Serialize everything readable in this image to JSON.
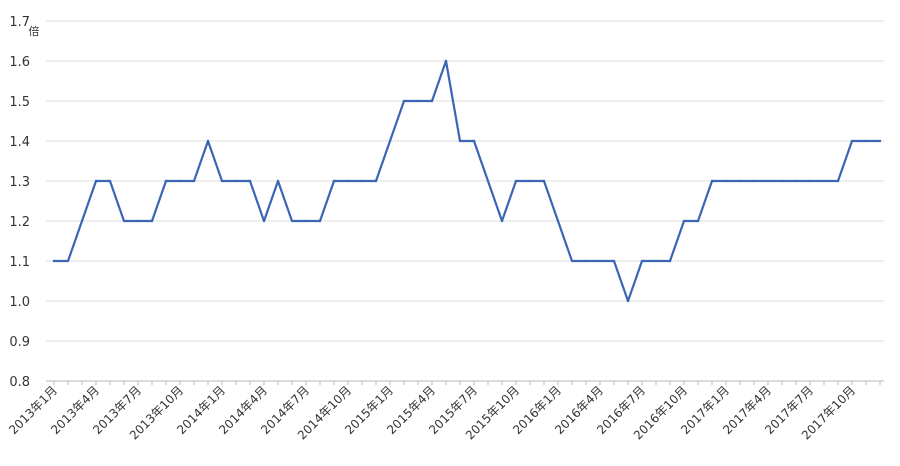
{
  "chart_data": {
    "type": "line",
    "unit_label": "倍",
    "ylim": [
      0.8,
      1.7
    ],
    "y_ticks": [
      "0.8",
      "0.9",
      "1.0",
      "1.1",
      "1.2",
      "1.3",
      "1.4",
      "1.5",
      "1.6",
      "1.7"
    ],
    "grid": true,
    "legend": "none",
    "x_tick_labels": [
      "2013年1月",
      "2013年4月",
      "2013年7月",
      "2013年10月",
      "2014年1月",
      "2014年4月",
      "2014年7月",
      "2014年10月",
      "2015年1月",
      "2015年4月",
      "2015年7月",
      "2015年10月",
      "2016年1月",
      "2016年4月",
      "2016年7月",
      "2016年10月",
      "2017年1月",
      "2017年4月",
      "2017年7月",
      "2017年10月"
    ],
    "series": [
      {
        "color": "#3a66b5",
        "values": [
          1.1,
          1.1,
          1.2,
          1.3,
          1.3,
          1.2,
          1.2,
          1.2,
          1.3,
          1.3,
          1.3,
          1.4,
          1.3,
          1.3,
          1.3,
          1.2,
          1.3,
          1.2,
          1.2,
          1.2,
          1.3,
          1.3,
          1.3,
          1.3,
          1.4,
          1.5,
          1.5,
          1.5,
          1.6,
          1.4,
          1.4,
          1.3,
          1.2,
          1.3,
          1.3,
          1.3,
          1.2,
          1.1,
          1.1,
          1.1,
          1.1,
          1.0,
          1.1,
          1.1,
          1.1,
          1.2,
          1.2,
          1.3,
          1.3,
          1.3,
          1.3,
          1.3,
          1.3,
          1.3,
          1.3,
          1.3,
          1.3,
          1.4,
          1.4,
          1.4
        ]
      }
    ]
  }
}
